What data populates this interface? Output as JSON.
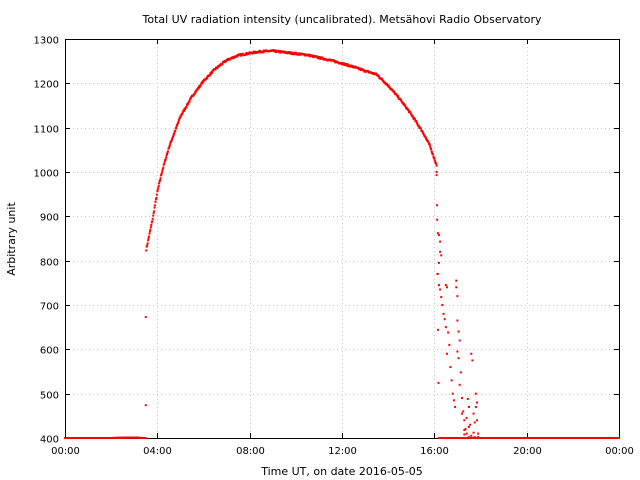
{
  "chart_data": {
    "type": "scatter",
    "title": "Total UV radiation intensity (uncalibrated). Metsähovi Radio Observatory",
    "xlabel": "Time UT, on date 2016-05-05",
    "ylabel": "Arbitrary unit",
    "xlim": [
      0,
      24
    ],
    "ylim": [
      400,
      1300
    ],
    "x_ticks": [
      "00:00",
      "04:00",
      "08:00",
      "12:00",
      "16:00",
      "20:00",
      "00:00"
    ],
    "y_ticks": [
      "400",
      "500",
      "600",
      "700",
      "800",
      "900",
      "1000",
      "1100",
      "1200",
      "1300"
    ],
    "grid": true,
    "series_color": "#ff0000",
    "curve_x": [
      0,
      1,
      2,
      3,
      3.3,
      3.5,
      3.52,
      3.6,
      3.8,
      4.0,
      4.2,
      4.5,
      5.0,
      5.5,
      6.0,
      6.5,
      7.0,
      7.5,
      8.0,
      8.5,
      9.0,
      9.5,
      10.0,
      10.5,
      11.0,
      11.5,
      12.0,
      12.5,
      13.0,
      13.5,
      14.0,
      14.5,
      15.0,
      15.5,
      15.8,
      16.0,
      16.1,
      16.2,
      17.0,
      18.0,
      19.0,
      20.0,
      21.0,
      22.0,
      23.0,
      24.0
    ],
    "curve_y": [
      400,
      400,
      400,
      401,
      400,
      400,
      825,
      845,
      895,
      955,
      1000,
      1055,
      1125,
      1170,
      1205,
      1232,
      1252,
      1263,
      1268,
      1272,
      1273,
      1270,
      1267,
      1264,
      1258,
      1252,
      1245,
      1237,
      1228,
      1220,
      1195,
      1165,
      1130,
      1090,
      1060,
      1030,
      1015,
      400,
      400,
      400,
      400,
      400,
      400,
      400,
      400,
      400
    ],
    "outlier_points": [
      [
        3.5,
        673
      ],
      [
        3.5,
        474
      ],
      [
        16.1,
        1000
      ],
      [
        16.1,
        993
      ],
      [
        16.12,
        925
      ],
      [
        16.15,
        862
      ],
      [
        16.2,
        858
      ],
      [
        16.25,
        843
      ],
      [
        16.2,
        795
      ],
      [
        16.25,
        820
      ],
      [
        16.3,
        812
      ],
      [
        16.15,
        770
      ],
      [
        16.2,
        745
      ],
      [
        16.25,
        735
      ],
      [
        16.3,
        718
      ],
      [
        16.35,
        700
      ],
      [
        16.4,
        680
      ],
      [
        16.45,
        668
      ],
      [
        16.5,
        745
      ],
      [
        16.55,
        740
      ],
      [
        16.5,
        650
      ],
      [
        16.6,
        638
      ],
      [
        16.65,
        610
      ],
      [
        16.55,
        590
      ],
      [
        16.7,
        560
      ],
      [
        16.75,
        530
      ],
      [
        16.8,
        500
      ],
      [
        16.85,
        485
      ],
      [
        16.9,
        470
      ],
      [
        16.95,
        755
      ],
      [
        16.95,
        740
      ],
      [
        17.0,
        720
      ],
      [
        17.0,
        665
      ],
      [
        17.05,
        640
      ],
      [
        17.1,
        620
      ],
      [
        17.0,
        595
      ],
      [
        17.05,
        580
      ],
      [
        17.15,
        548
      ],
      [
        17.1,
        520
      ],
      [
        17.2,
        490
      ],
      [
        17.25,
        460
      ],
      [
        17.3,
        440
      ],
      [
        17.35,
        420
      ],
      [
        17.4,
        445
      ],
      [
        17.45,
        488
      ],
      [
        17.5,
        470
      ],
      [
        17.55,
        430
      ],
      [
        17.6,
        590
      ],
      [
        17.65,
        575
      ],
      [
        17.7,
        455
      ],
      [
        17.75,
        435
      ],
      [
        17.8,
        500
      ],
      [
        17.8,
        470
      ],
      [
        17.85,
        480
      ],
      [
        17.85,
        440
      ],
      [
        17.9,
        410
      ],
      [
        17.2,
        455
      ],
      [
        17.3,
        418
      ],
      [
        17.4,
        410
      ],
      [
        17.5,
        425
      ],
      [
        17.6,
        405
      ],
      [
        17.7,
        412
      ],
      [
        17.75,
        402
      ],
      [
        17.3,
        408
      ],
      [
        17.5,
        402
      ],
      [
        17.9,
        402
      ]
    ]
  }
}
